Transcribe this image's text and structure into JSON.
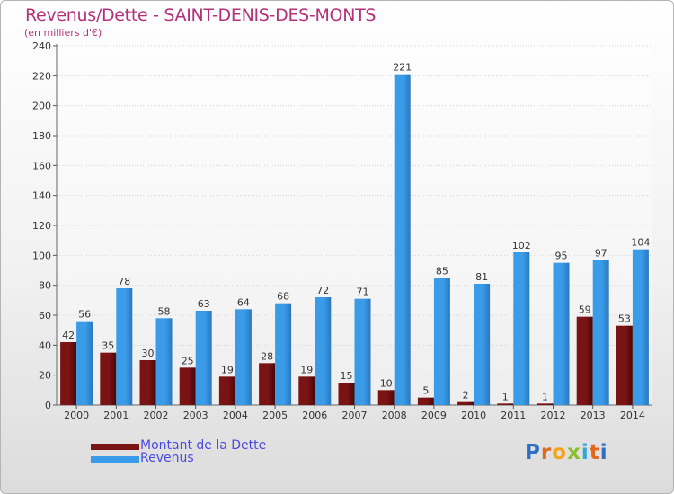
{
  "header": {
    "title": "Revenus/Dette - SAINT-DENIS-DES-MONTS",
    "subtitle": "(en milliers d'€)"
  },
  "legend": {
    "items": [
      {
        "label": "Montant de la Dette",
        "color": "#7a1414"
      },
      {
        "label": "Revenus",
        "color": "#3a9ce8"
      }
    ]
  },
  "logo": {
    "letters": [
      {
        "ch": "P",
        "color": "#2e6fc4"
      },
      {
        "ch": "r",
        "color": "#e2681e"
      },
      {
        "ch": "o",
        "color": "#f2a41c"
      },
      {
        "ch": "x",
        "color": "#8abf2a"
      },
      {
        "ch": "i",
        "color": "#2fa7d9"
      },
      {
        "ch": "t",
        "color": "#e2681e"
      },
      {
        "ch": "i",
        "color": "#2e6fc4"
      }
    ]
  },
  "chart_data": {
    "type": "bar",
    "title": "Revenus/Dette - SAINT-DENIS-DES-MONTS",
    "subtitle": "(en milliers d'€)",
    "categories": [
      "2000",
      "2001",
      "2002",
      "2003",
      "2004",
      "2005",
      "2006",
      "2007",
      "2008",
      "2009",
      "2010",
      "2011",
      "2012",
      "2013",
      "2014"
    ],
    "series": [
      {
        "name": "Montant de la Dette",
        "color": "#7a1414",
        "values": [
          42,
          35,
          30,
          25,
          19,
          28,
          19,
          15,
          10,
          5,
          2,
          1,
          1,
          59,
          53
        ]
      },
      {
        "name": "Revenus",
        "color": "#3a9ce8",
        "values": [
          56,
          78,
          58,
          63,
          64,
          68,
          72,
          71,
          221,
          85,
          81,
          102,
          95,
          97,
          104
        ]
      }
    ],
    "ylim": [
      0,
      240
    ],
    "yticks": [
      0,
      20,
      40,
      60,
      80,
      100,
      120,
      140,
      160,
      180,
      200,
      220,
      240
    ],
    "grid": true,
    "legend_position": "bottom-left"
  }
}
